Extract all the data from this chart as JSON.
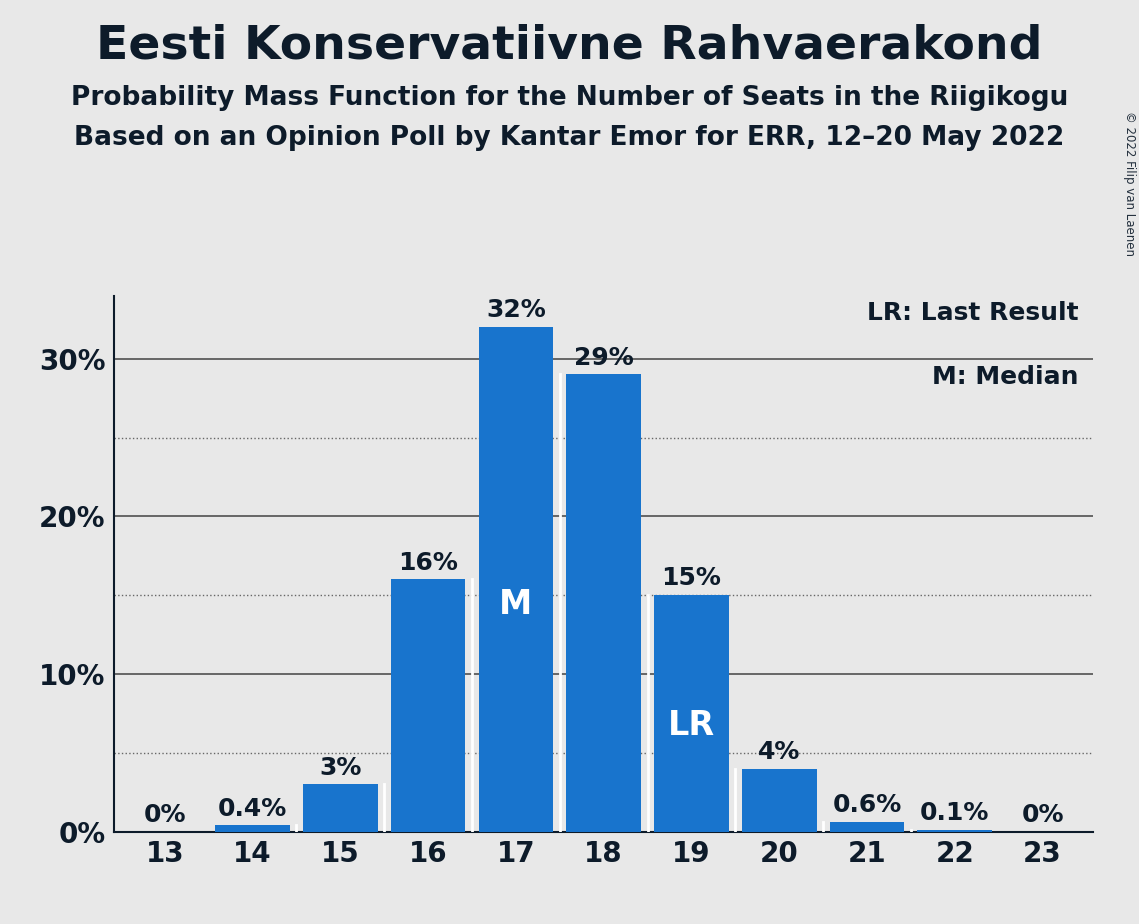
{
  "title": "Eesti Konservatiivne Rahvaerakond",
  "subtitle1": "Probability Mass Function for the Number of Seats in the Riigikogu",
  "subtitle2": "Based on an Opinion Poll by Kantar Emor for ERR, 12–20 May 2022",
  "copyright": "© 2022 Filip van Laenen",
  "categories": [
    13,
    14,
    15,
    16,
    17,
    18,
    19,
    20,
    21,
    22,
    23
  ],
  "values": [
    0.0,
    0.4,
    3.0,
    16.0,
    32.0,
    29.0,
    15.0,
    4.0,
    0.6,
    0.1,
    0.0
  ],
  "labels": [
    "0%",
    "0.4%",
    "3%",
    "16%",
    "32%",
    "29%",
    "15%",
    "4%",
    "0.6%",
    "0.1%",
    "0%"
  ],
  "bar_color": "#1874CD",
  "background_color": "#E8E8E8",
  "median_bar": 17,
  "lr_bar": 19,
  "legend_text1": "LR: Last Result",
  "legend_text2": "M: Median",
  "title_fontsize": 34,
  "subtitle_fontsize": 19,
  "label_fontsize": 18,
  "ytick_fontsize": 20,
  "xtick_fontsize": 20,
  "ylim": [
    0,
    34
  ],
  "solid_gridlines": [
    0,
    10,
    20,
    30
  ],
  "dotted_gridlines": [
    5,
    15,
    25
  ],
  "ytick_positions": [
    0,
    10,
    20,
    30
  ],
  "ytick_labels": [
    "0%",
    "10%",
    "20%",
    "30%"
  ],
  "grid_color": "#111111",
  "text_color": "#0D1B2A"
}
